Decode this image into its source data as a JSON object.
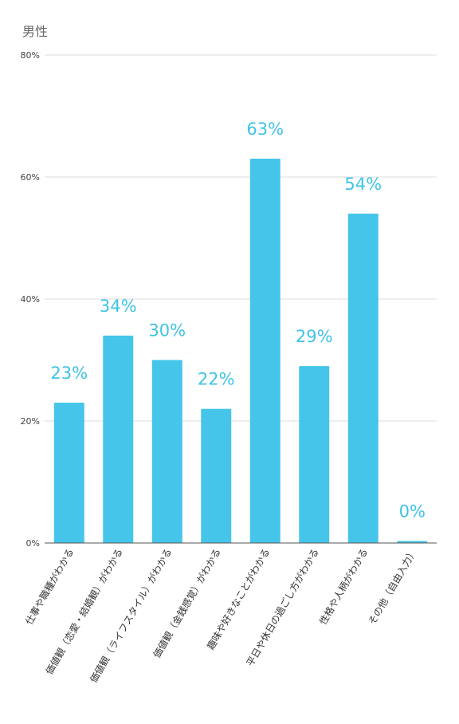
{
  "chart_data": {
    "type": "bar",
    "title": "男性",
    "categories": [
      "仕事や職種がわかる",
      "価値観（恋愛・結婚観）がわかる",
      "価値観（ライフスタイル）がわかる",
      "価値観（金銭感覚）がわかる",
      "趣味や好きなことがわかる",
      "平日や休日の過ごし方がわかる",
      "性格や人柄がわかる",
      "その他（自由入力）"
    ],
    "values": [
      23,
      34,
      30,
      22,
      63,
      29,
      54,
      0
    ],
    "value_labels": [
      "23%",
      "34%",
      "30%",
      "22%",
      "63%",
      "29%",
      "54%",
      "0%"
    ],
    "yticks": [
      "0%",
      "20%",
      "40%",
      "60%",
      "80%"
    ],
    "ylim": [
      0,
      80
    ],
    "grid": true,
    "color": "#45c5ea"
  }
}
